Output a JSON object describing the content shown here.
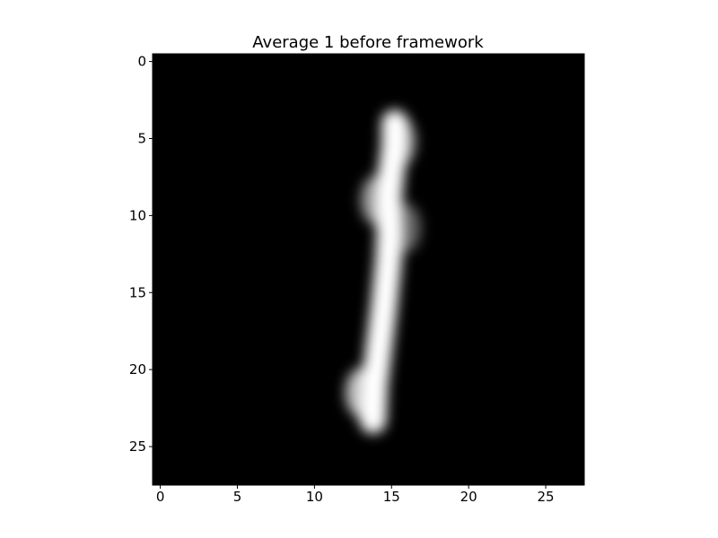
{
  "chart_data": {
    "type": "heatmap",
    "title": "Average 1 before framework",
    "xlabel": "",
    "ylabel": "",
    "colormap": "gray",
    "xlim": [
      -0.5,
      27.5
    ],
    "ylim": [
      27.5,
      -0.5
    ],
    "xticks": [
      0,
      5,
      10,
      15,
      20,
      25
    ],
    "yticks": [
      0,
      5,
      10,
      15,
      20,
      25
    ],
    "grid": false,
    "stroke_points": [
      {
        "x": 15.2,
        "y": 4.0
      },
      {
        "x": 15.2,
        "y": 5.5
      },
      {
        "x": 15.0,
        "y": 7.0
      },
      {
        "x": 14.8,
        "y": 9.0
      },
      {
        "x": 14.9,
        "y": 11.0
      },
      {
        "x": 14.8,
        "y": 13.0
      },
      {
        "x": 14.5,
        "y": 16.0
      },
      {
        "x": 14.2,
        "y": 18.5
      },
      {
        "x": 13.9,
        "y": 21.0
      },
      {
        "x": 13.8,
        "y": 23.3
      }
    ],
    "blobs": [
      {
        "x": 15.6,
        "y": 5.2,
        "intensity": 0.55
      },
      {
        "x": 15.9,
        "y": 10.8,
        "intensity": 0.4
      },
      {
        "x": 13.0,
        "y": 21.5,
        "intensity": 0.75
      },
      {
        "x": 14.0,
        "y": 9.0,
        "intensity": 0.6
      }
    ],
    "colors": {
      "background": "#000000",
      "stroke": "#ffffff",
      "axes": "#000000"
    }
  }
}
